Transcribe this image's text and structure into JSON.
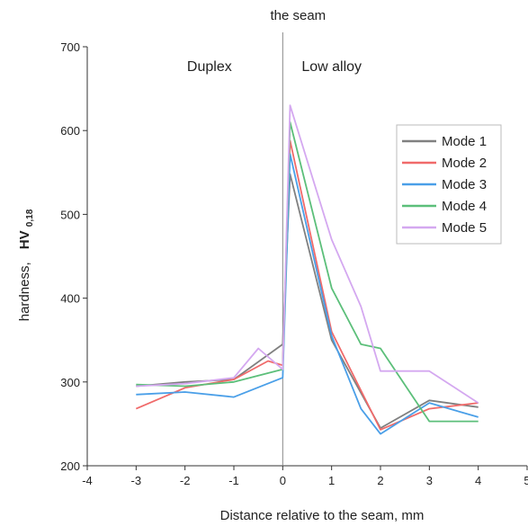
{
  "chart_data": {
    "type": "line",
    "title": "the seam",
    "xlabel": "Distance relative to the seam, mm",
    "ylabel": "hardness,",
    "ylabel_symbol": "HV",
    "ylabel_subscript": "0,18",
    "xlim": [
      -4,
      5
    ],
    "ylim": [
      200,
      700
    ],
    "xticks": [
      -4,
      -3,
      -2,
      -1,
      0,
      1,
      2,
      3,
      4,
      5
    ],
    "yticks": [
      200,
      300,
      400,
      500,
      600,
      700
    ],
    "seam_x": 0,
    "regions": [
      {
        "label": "Duplex",
        "x": -1.5
      },
      {
        "label": "Low alloy",
        "x": 1.0
      }
    ],
    "legend_position": "right",
    "series": [
      {
        "name": "Mode 1",
        "color": "#808080",
        "x": [
          -3,
          -2,
          -1,
          0,
          0.15,
          1,
          2,
          3,
          4
        ],
        "y": [
          295,
          300,
          303,
          345,
          548,
          350,
          245,
          278,
          270
        ]
      },
      {
        "name": "Mode 2",
        "color": "#f06a6a",
        "x": [
          -3,
          -2,
          -1,
          -0.3,
          0,
          0.15,
          1,
          2,
          3,
          4
        ],
        "y": [
          268,
          293,
          303,
          325,
          320,
          588,
          360,
          243,
          268,
          275
        ]
      },
      {
        "name": "Mode 3",
        "color": "#4a9fe8",
        "x": [
          -3,
          -2,
          -1,
          0,
          0.15,
          1,
          1.6,
          2,
          3,
          4
        ],
        "y": [
          285,
          288,
          282,
          305,
          572,
          355,
          268,
          238,
          275,
          258
        ]
      },
      {
        "name": "Mode 4",
        "color": "#5cbf7a",
        "x": [
          -3,
          -2,
          -1,
          0,
          0.15,
          1,
          1.6,
          2,
          3,
          4
        ],
        "y": [
          297,
          295,
          300,
          315,
          610,
          412,
          345,
          340,
          253,
          253
        ]
      },
      {
        "name": "Mode 5",
        "color": "#d4a8f0",
        "x": [
          -3,
          -2,
          -1,
          -0.5,
          0,
          0.15,
          1,
          1.6,
          2,
          3,
          4
        ],
        "y": [
          295,
          298,
          305,
          340,
          315,
          630,
          470,
          390,
          313,
          313,
          275
        ]
      }
    ]
  }
}
